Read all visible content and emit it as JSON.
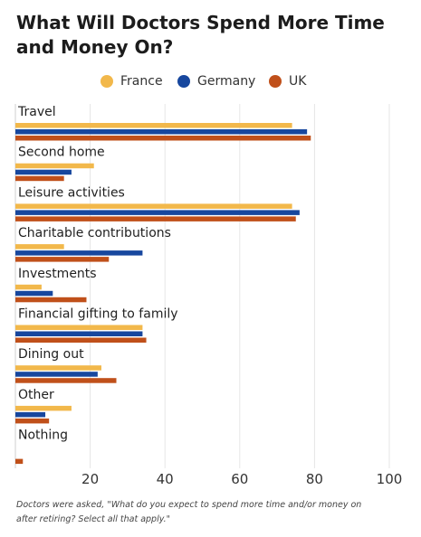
{
  "chart_data": {
    "type": "bar",
    "orientation": "horizontal",
    "title": "What Will Doctors Spend More Time and Money On?",
    "categories": [
      "Travel",
      "Second home",
      "Leisure activities",
      "Charitable contributions",
      "Investments",
      "Financial gifting to family",
      "Dining out",
      "Other",
      "Nothing"
    ],
    "series": [
      {
        "name": "France",
        "color": "#f2b84b",
        "values": [
          74,
          21,
          74,
          13,
          7,
          34,
          23,
          15,
          0
        ]
      },
      {
        "name": "Germany",
        "color": "#17479e",
        "values": [
          78,
          15,
          76,
          34,
          10,
          34,
          22,
          8,
          0
        ]
      },
      {
        "name": "UK",
        "color": "#c0501a",
        "values": [
          79,
          13,
          75,
          25,
          19,
          35,
          27,
          9,
          2
        ]
      }
    ],
    "xlim": [
      0,
      100
    ],
    "xticks": [
      20,
      40,
      60,
      80,
      100
    ],
    "grid": true,
    "legend_position": "top"
  },
  "footnote": "Doctors were asked, \"What do you expect to spend more time and/or money on after retiring? Select all that apply.\""
}
